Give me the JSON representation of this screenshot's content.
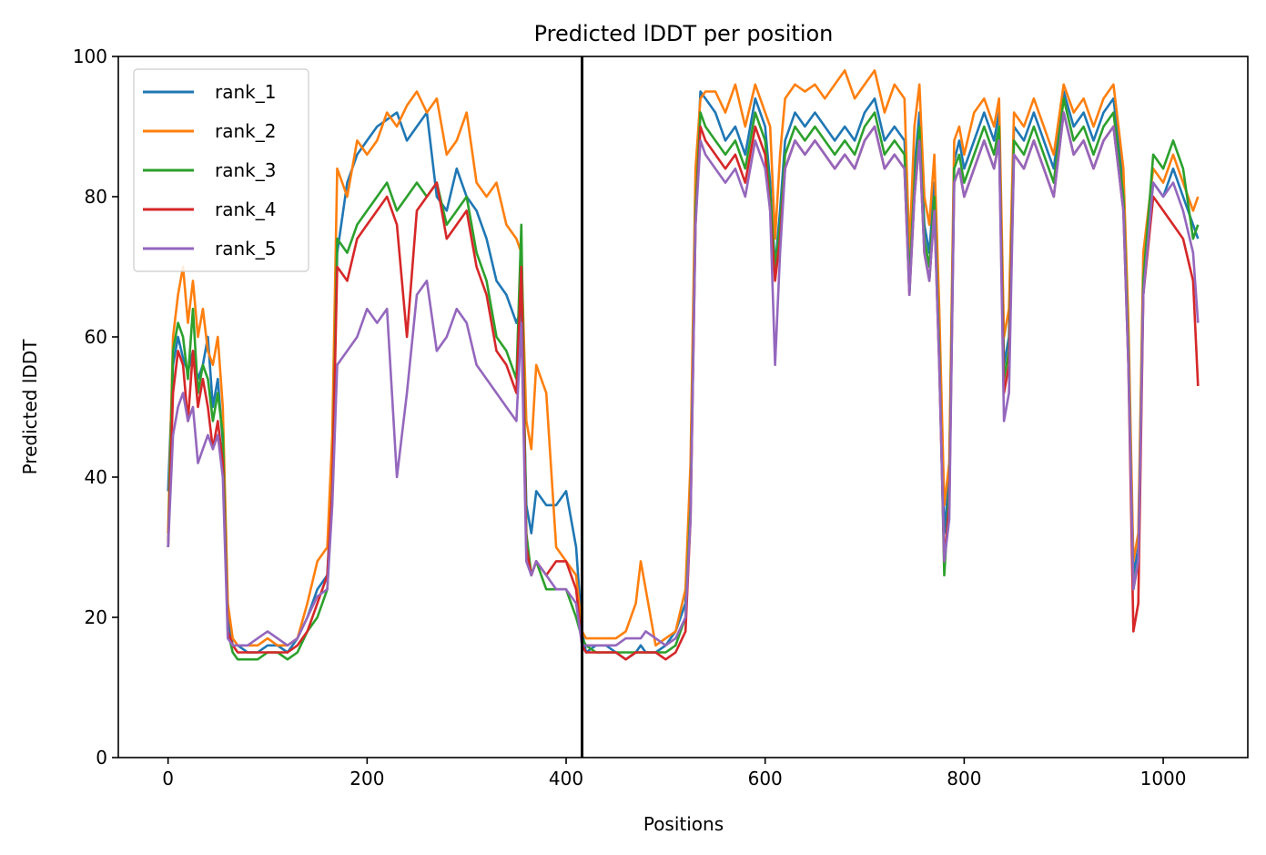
{
  "chart_data": {
    "type": "line",
    "title": "Predicted lDDT per position",
    "xlabel": "Positions",
    "ylabel": "Predicted lDDT",
    "xlim": [
      -50,
      1085
    ],
    "ylim": [
      0,
      100
    ],
    "xticks": [
      0,
      200,
      400,
      600,
      800,
      1000
    ],
    "yticks": [
      0,
      20,
      40,
      60,
      80,
      100
    ],
    "grid": false,
    "legend_position": "top-left",
    "vline": 416,
    "x": [
      0,
      5,
      10,
      15,
      20,
      25,
      30,
      35,
      40,
      45,
      50,
      55,
      60,
      65,
      70,
      80,
      90,
      100,
      110,
      120,
      130,
      140,
      150,
      160,
      165,
      170,
      180,
      190,
      200,
      210,
      220,
      230,
      240,
      250,
      260,
      270,
      280,
      290,
      300,
      310,
      320,
      330,
      340,
      350,
      355,
      360,
      365,
      370,
      380,
      390,
      400,
      410,
      416,
      420,
      430,
      440,
      450,
      460,
      470,
      475,
      480,
      490,
      500,
      510,
      520,
      525,
      530,
      535,
      540,
      550,
      560,
      570,
      580,
      590,
      600,
      605,
      610,
      615,
      620,
      630,
      640,
      650,
      660,
      670,
      680,
      690,
      700,
      710,
      720,
      730,
      740,
      745,
      750,
      755,
      760,
      765,
      770,
      775,
      780,
      785,
      790,
      795,
      800,
      810,
      820,
      830,
      835,
      840,
      845,
      850,
      860,
      870,
      880,
      890,
      900,
      910,
      920,
      930,
      940,
      950,
      955,
      960,
      965,
      970,
      975,
      980,
      990,
      1000,
      1010,
      1020,
      1030,
      1035
    ],
    "series": [
      {
        "name": "rank_1",
        "color": "#1f77b4",
        "values": [
          38,
          56,
          60,
          57,
          55,
          58,
          54,
          56,
          60,
          50,
          54,
          45,
          20,
          16,
          16,
          15,
          15,
          16,
          16,
          15,
          17,
          20,
          24,
          26,
          40,
          72,
          82,
          86,
          88,
          90,
          91,
          92,
          88,
          90,
          92,
          80,
          78,
          84,
          80,
          78,
          74,
          68,
          66,
          62,
          64,
          36,
          32,
          38,
          36,
          36,
          38,
          30,
          18,
          15,
          16,
          16,
          15,
          14,
          15,
          16,
          15,
          15,
          16,
          18,
          22,
          40,
          80,
          95,
          94,
          92,
          88,
          90,
          86,
          94,
          90,
          82,
          70,
          78,
          88,
          92,
          90,
          92,
          90,
          88,
          90,
          88,
          92,
          94,
          88,
          90,
          88,
          70,
          84,
          92,
          76,
          72,
          82,
          60,
          32,
          40,
          85,
          88,
          84,
          88,
          92,
          88,
          92,
          56,
          60,
          90,
          88,
          92,
          88,
          84,
          95,
          90,
          92,
          88,
          92,
          94,
          88,
          82,
          60,
          26,
          30,
          70,
          82,
          80,
          84,
          80,
          76,
          74
        ]
      },
      {
        "name": "rank_2",
        "color": "#ff7f0e",
        "values": [
          32,
          60,
          66,
          70,
          62,
          68,
          60,
          64,
          58,
          56,
          60,
          50,
          22,
          17,
          16,
          16,
          16,
          17,
          16,
          16,
          17,
          22,
          28,
          30,
          46,
          84,
          80,
          88,
          86,
          88,
          92,
          90,
          93,
          95,
          92,
          94,
          86,
          88,
          92,
          82,
          80,
          82,
          76,
          74,
          72,
          48,
          44,
          56,
          52,
          30,
          28,
          26,
          18,
          17,
          17,
          17,
          17,
          18,
          22,
          28,
          24,
          16,
          17,
          18,
          24,
          42,
          84,
          94,
          95,
          95,
          92,
          96,
          90,
          96,
          92,
          90,
          74,
          86,
          94,
          96,
          95,
          96,
          94,
          96,
          98,
          94,
          96,
          98,
          92,
          96,
          94,
          72,
          90,
          96,
          80,
          76,
          86,
          64,
          36,
          42,
          88,
          90,
          86,
          92,
          94,
          90,
          94,
          60,
          64,
          92,
          90,
          94,
          90,
          86,
          96,
          92,
          94,
          90,
          94,
          96,
          90,
          84,
          62,
          28,
          32,
          72,
          84,
          82,
          86,
          82,
          78,
          80
        ]
      },
      {
        "name": "rank_3",
        "color": "#2ca02c",
        "values": [
          30,
          58,
          62,
          60,
          54,
          64,
          52,
          56,
          54,
          48,
          52,
          46,
          18,
          15,
          14,
          14,
          14,
          15,
          15,
          14,
          15,
          18,
          20,
          24,
          38,
          74,
          72,
          76,
          78,
          80,
          82,
          78,
          80,
          82,
          80,
          82,
          76,
          78,
          80,
          72,
          68,
          60,
          58,
          54,
          76,
          32,
          26,
          28,
          24,
          24,
          24,
          20,
          17,
          16,
          15,
          15,
          15,
          15,
          15,
          15,
          15,
          15,
          15,
          16,
          20,
          36,
          78,
          92,
          90,
          88,
          86,
          88,
          84,
          92,
          88,
          80,
          70,
          76,
          86,
          90,
          88,
          90,
          88,
          86,
          88,
          86,
          90,
          92,
          86,
          88,
          86,
          68,
          82,
          90,
          74,
          70,
          80,
          58,
          26,
          38,
          84,
          86,
          82,
          86,
          90,
          86,
          90,
          54,
          58,
          88,
          86,
          90,
          86,
          82,
          94,
          88,
          90,
          86,
          90,
          92,
          86,
          80,
          58,
          24,
          28,
          68,
          86,
          84,
          88,
          84,
          74,
          76
        ]
      },
      {
        "name": "rank_4",
        "color": "#d62728",
        "values": [
          30,
          52,
          58,
          56,
          48,
          58,
          50,
          54,
          50,
          44,
          48,
          42,
          18,
          16,
          15,
          15,
          15,
          15,
          15,
          15,
          16,
          18,
          22,
          26,
          38,
          70,
          68,
          74,
          76,
          78,
          80,
          76,
          60,
          78,
          80,
          82,
          74,
          76,
          78,
          70,
          66,
          58,
          56,
          52,
          70,
          30,
          26,
          28,
          26,
          28,
          28,
          24,
          16,
          15,
          15,
          15,
          15,
          14,
          15,
          15,
          15,
          15,
          14,
          15,
          18,
          34,
          76,
          90,
          88,
          86,
          84,
          86,
          82,
          90,
          86,
          78,
          68,
          74,
          84,
          88,
          86,
          88,
          86,
          84,
          86,
          84,
          88,
          90,
          84,
          86,
          84,
          66,
          80,
          88,
          72,
          68,
          78,
          56,
          28,
          36,
          82,
          84,
          80,
          84,
          88,
          84,
          88,
          52,
          56,
          86,
          84,
          88,
          84,
          80,
          92,
          86,
          88,
          84,
          88,
          90,
          84,
          78,
          56,
          18,
          22,
          66,
          80,
          78,
          76,
          74,
          68,
          53
        ]
      },
      {
        "name": "rank_5",
        "color": "#9467bd",
        "values": [
          30,
          46,
          50,
          52,
          48,
          50,
          42,
          44,
          46,
          44,
          46,
          40,
          17,
          16,
          16,
          16,
          17,
          18,
          17,
          16,
          17,
          20,
          23,
          24,
          36,
          56,
          58,
          60,
          64,
          62,
          64,
          40,
          52,
          66,
          68,
          58,
          60,
          64,
          62,
          56,
          54,
          52,
          50,
          48,
          62,
          28,
          26,
          28,
          26,
          24,
          24,
          22,
          16,
          16,
          16,
          16,
          16,
          17,
          17,
          17,
          18,
          17,
          16,
          17,
          20,
          34,
          76,
          88,
          86,
          84,
          82,
          84,
          80,
          88,
          84,
          78,
          56,
          72,
          84,
          88,
          86,
          88,
          86,
          84,
          86,
          84,
          88,
          90,
          84,
          86,
          84,
          66,
          80,
          88,
          72,
          68,
          78,
          56,
          28,
          34,
          82,
          84,
          80,
          84,
          88,
          84,
          88,
          48,
          52,
          86,
          84,
          88,
          84,
          80,
          92,
          86,
          88,
          84,
          88,
          90,
          84,
          78,
          56,
          24,
          28,
          66,
          82,
          80,
          82,
          78,
          72,
          62
        ]
      }
    ]
  }
}
